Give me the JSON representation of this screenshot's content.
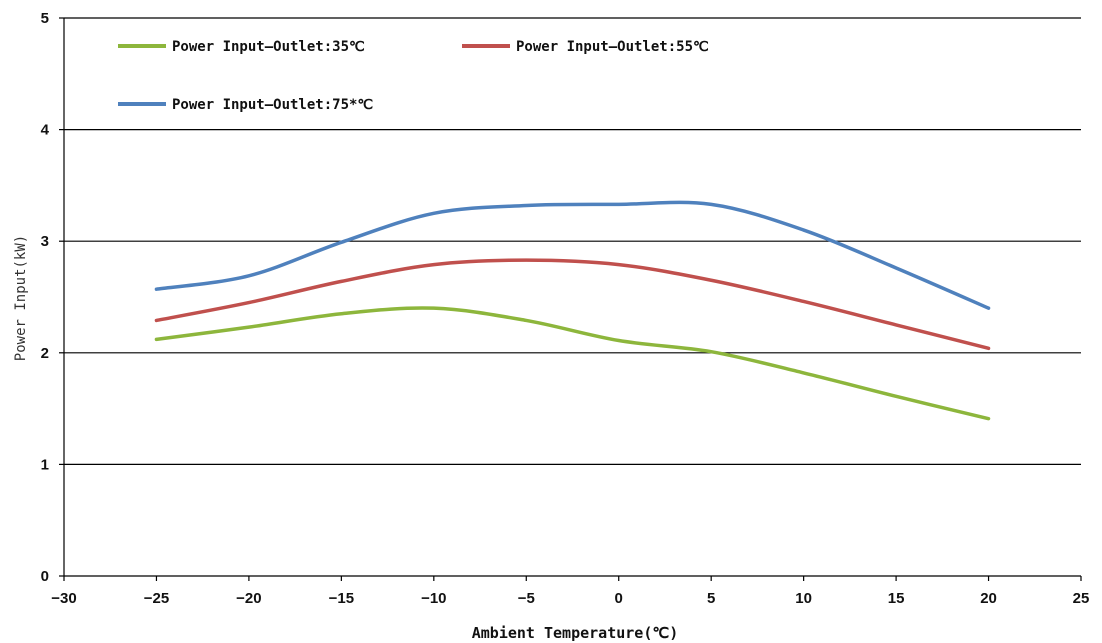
{
  "chart_data": {
    "type": "line",
    "title": "",
    "xlabel": "Ambient Temperature(℃)",
    "ylabel": "Power Input(kW)",
    "xlim": [
      -30,
      25
    ],
    "ylim": [
      0,
      5
    ],
    "xticks": [
      -30,
      -25,
      -20,
      -15,
      -10,
      -5,
      0,
      5,
      10,
      15,
      20,
      25
    ],
    "yticks": [
      0,
      1,
      2,
      3,
      4,
      5
    ],
    "grid": "horizontal",
    "legend_position": "top-left",
    "series": [
      {
        "name": "Power Input—Outlet:35℃",
        "color": "#8DB63C",
        "x": [
          -25,
          -20,
          -15,
          -10,
          -5,
          0,
          5,
          10,
          15,
          20
        ],
        "y": [
          2.12,
          2.23,
          2.35,
          2.4,
          2.29,
          2.11,
          2.01,
          1.82,
          1.61,
          1.41
        ]
      },
      {
        "name": "Power Input—Outlet:55℃",
        "color": "#C0504D",
        "x": [
          -25,
          -20,
          -15,
          -10,
          -5,
          0,
          5,
          10,
          15,
          20
        ],
        "y": [
          2.29,
          2.45,
          2.64,
          2.79,
          2.83,
          2.79,
          2.65,
          2.46,
          2.25,
          2.04
        ]
      },
      {
        "name": "Power Input—Outlet:75*℃",
        "color": "#4F81BD",
        "x": [
          -25,
          -20,
          -15,
          -10,
          -5,
          0,
          5,
          10,
          15,
          20
        ],
        "y": [
          2.57,
          2.69,
          2.99,
          3.25,
          3.32,
          3.33,
          3.33,
          3.1,
          2.76,
          2.4
        ]
      }
    ]
  }
}
